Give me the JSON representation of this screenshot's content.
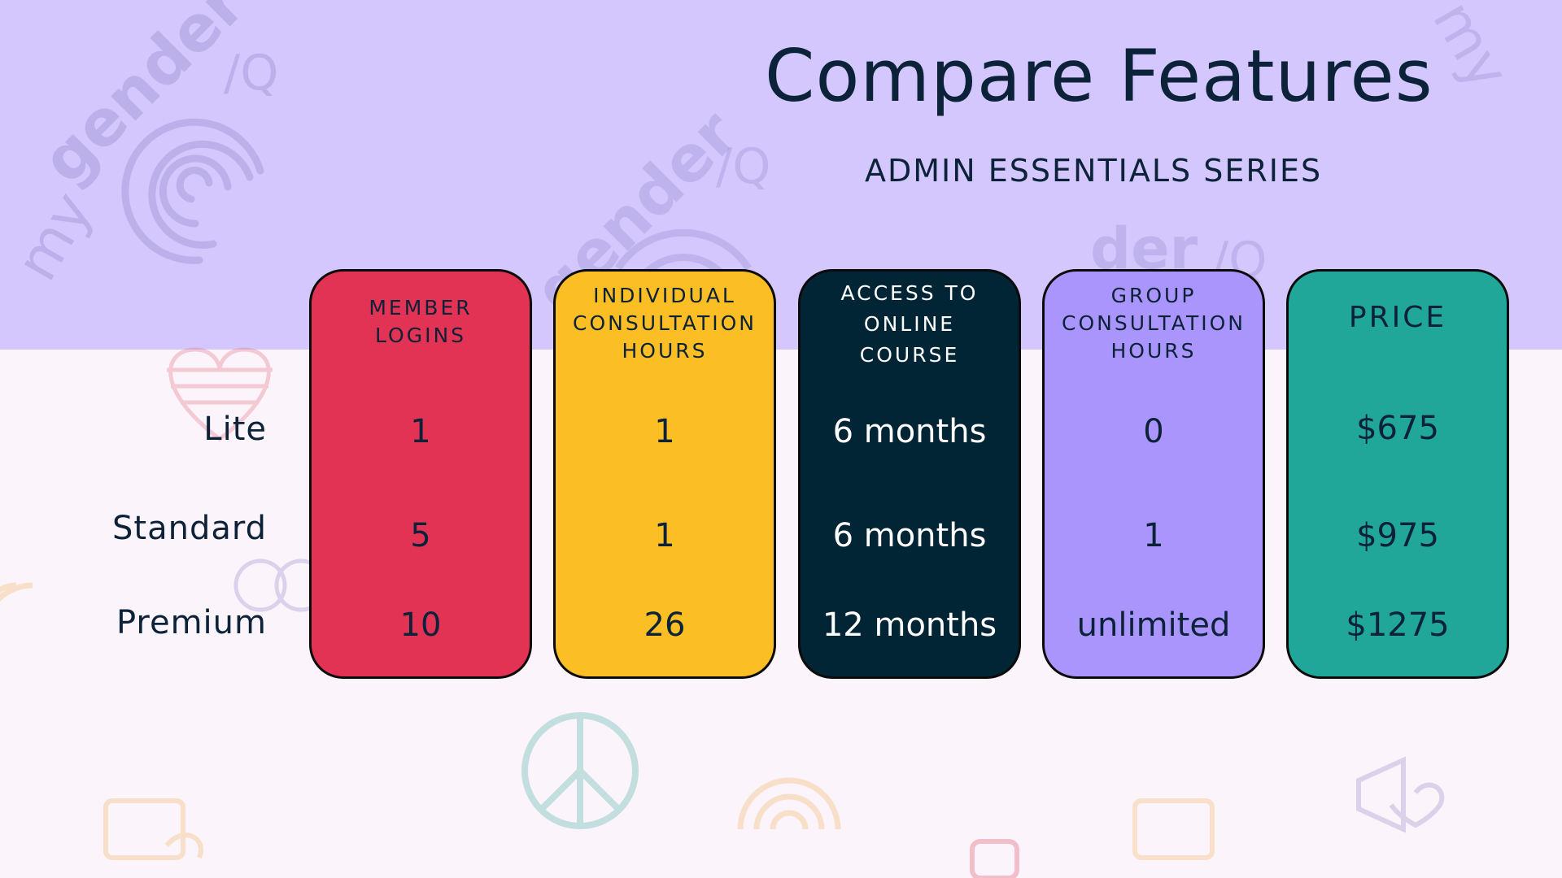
{
  "header": {
    "title": "Compare Features",
    "subtitle": "ADMIN ESSENTIALS SERIES"
  },
  "tiers": [
    "Lite",
    "Standard",
    "Premium"
  ],
  "columns": [
    {
      "header_lines": [
        "MEMBER",
        "LOGINS"
      ],
      "values": [
        "1",
        "5",
        "10"
      ],
      "bg": "#e33355",
      "text_color": "#0c2238"
    },
    {
      "header_lines": [
        "INDIVIDUAL",
        "CONSULTATION",
        "HOURS"
      ],
      "values": [
        "1",
        "1",
        "26"
      ],
      "bg": "#fbbe24",
      "text_color": "#0c2238"
    },
    {
      "header_lines": [
        "ACCESS TO",
        "ONLINE",
        "COURSE"
      ],
      "values": [
        "6 months",
        "6 months",
        "12 months"
      ],
      "bg": "#022536",
      "text_color": "#ffffff"
    },
    {
      "header_lines": [
        "GROUP",
        "CONSULTATION",
        "HOURS"
      ],
      "values": [
        "0",
        "1",
        "unlimited"
      ],
      "bg": "#a995fc",
      "text_color": "#0c2238"
    },
    {
      "header_lines": [
        "PRICE"
      ],
      "values": [
        "$675",
        "$975",
        "$1275"
      ],
      "bg": "#20a79a",
      "text_color": "#0c2238"
    }
  ],
  "watermark": {
    "brand_a": "my",
    "brand_b": "gender",
    "brand_c": "/Q"
  },
  "icons": [
    "fingerprint-icon",
    "heart-flag-icon",
    "peace-icon",
    "rainbow-icon",
    "chat-heart-icon",
    "fist-icon",
    "megaphone-heart-icon"
  ]
}
